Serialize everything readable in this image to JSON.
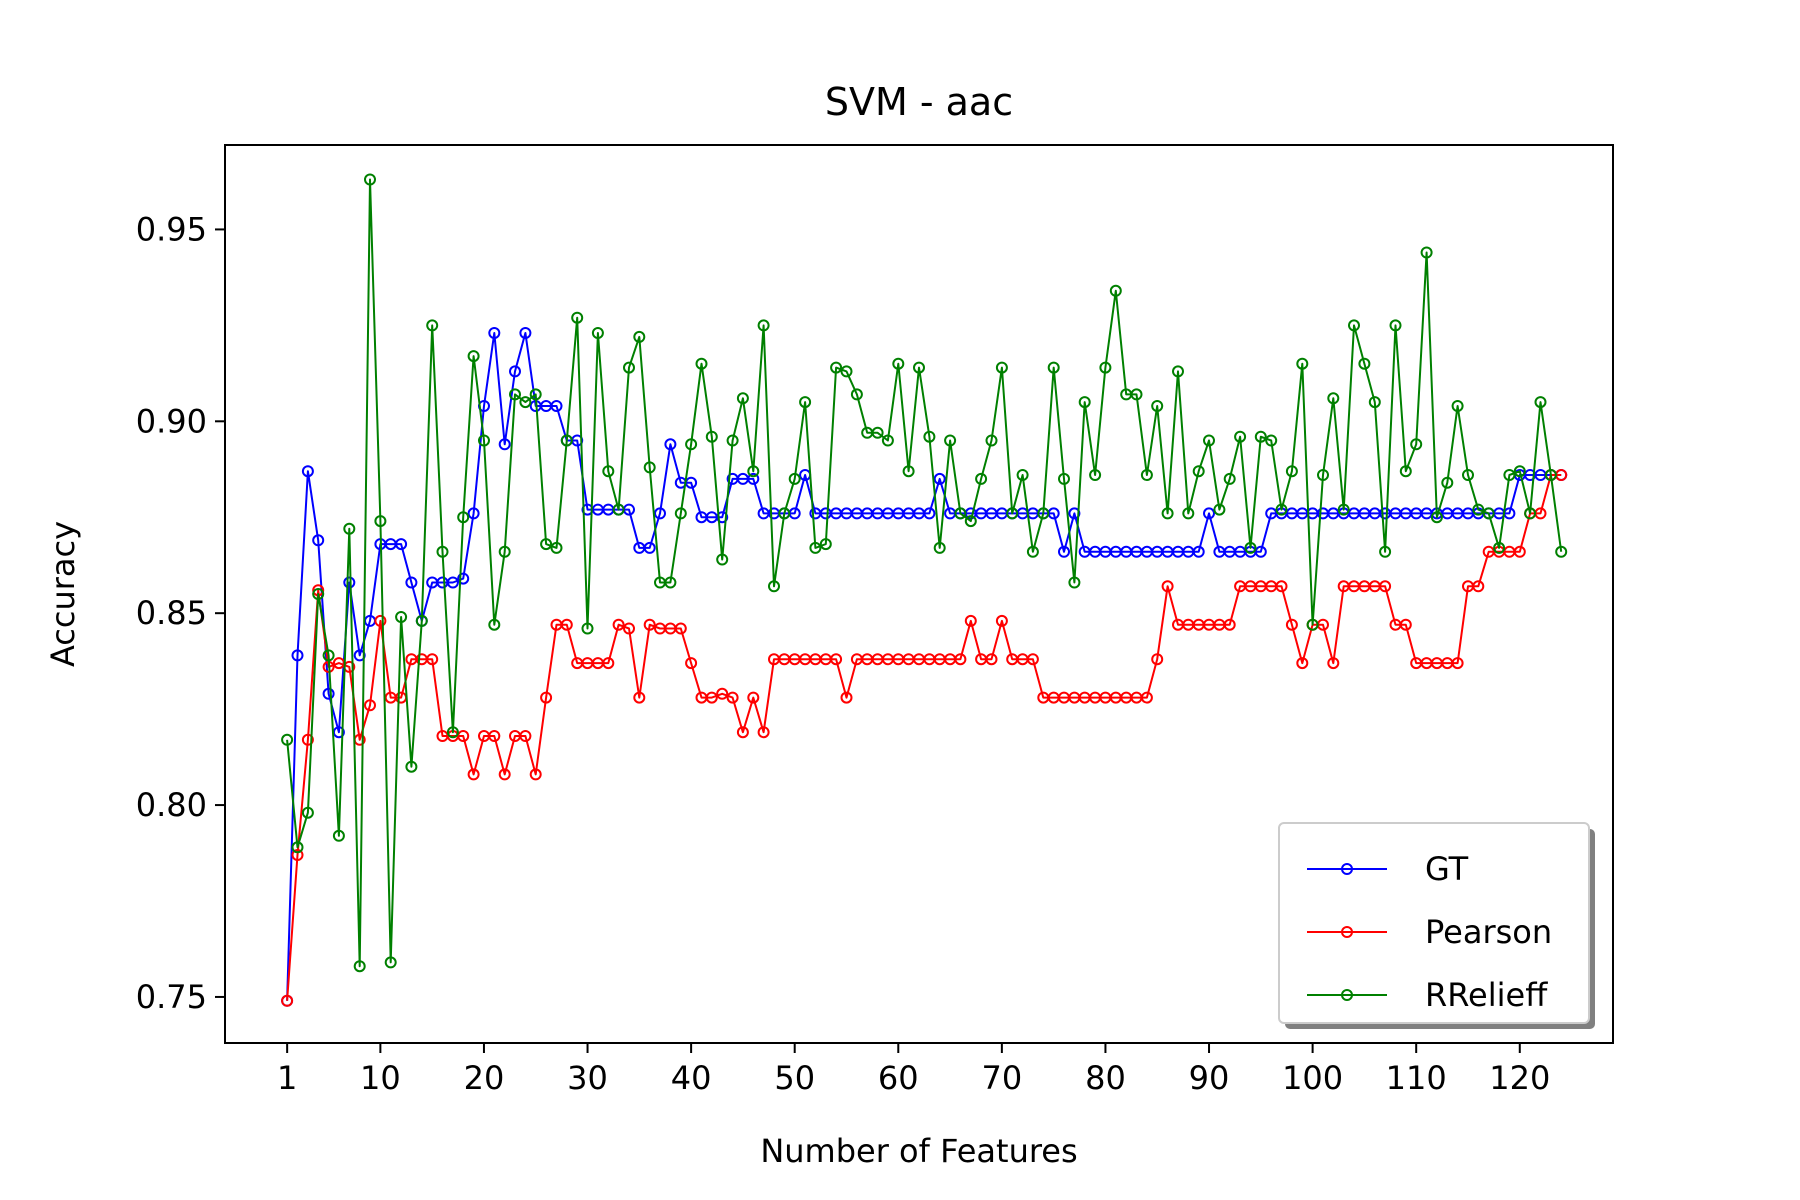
{
  "chart_data": {
    "type": "line",
    "title": "SVM - aac",
    "xlabel": "Number of Features",
    "ylabel": "Accuracy",
    "xlim": [
      -5,
      129
    ],
    "ylim": [
      0.738,
      0.972
    ],
    "xticks": [
      1,
      10,
      20,
      30,
      40,
      50,
      60,
      70,
      80,
      90,
      100,
      110,
      120
    ],
    "yticks": [
      0.75,
      0.8,
      0.85,
      0.9,
      0.95
    ],
    "ytick_labels": [
      "0.75",
      "0.80",
      "0.85",
      "0.90",
      "0.95"
    ],
    "grid": false,
    "legend": {
      "position": "lower-right",
      "shadow": true
    },
    "x": [
      1,
      2,
      3,
      4,
      5,
      6,
      7,
      8,
      9,
      10,
      11,
      12,
      13,
      14,
      15,
      16,
      17,
      18,
      19,
      20,
      21,
      22,
      23,
      24,
      25,
      26,
      27,
      28,
      29,
      30,
      31,
      32,
      33,
      34,
      35,
      36,
      37,
      38,
      39,
      40,
      41,
      42,
      43,
      44,
      45,
      46,
      47,
      48,
      49,
      50,
      51,
      52,
      53,
      54,
      55,
      56,
      57,
      58,
      59,
      60,
      61,
      62,
      63,
      64,
      65,
      66,
      67,
      68,
      69,
      70,
      71,
      72,
      73,
      74,
      75,
      76,
      77,
      78,
      79,
      80,
      81,
      82,
      83,
      84,
      85,
      86,
      87,
      88,
      89,
      90,
      91,
      92,
      93,
      94,
      95,
      96,
      97,
      98,
      99,
      100,
      101,
      102,
      103,
      104,
      105,
      106,
      107,
      108,
      109,
      110,
      111,
      112,
      113,
      114,
      115,
      116,
      117,
      118,
      119,
      120,
      121,
      122,
      123,
      124
    ],
    "series": [
      {
        "name": "GT",
        "color": "#0000ff",
        "values": [
          0.749,
          0.839,
          0.887,
          0.869,
          0.829,
          0.819,
          0.858,
          0.839,
          0.848,
          0.868,
          0.868,
          0.868,
          0.858,
          0.848,
          0.858,
          0.858,
          0.858,
          0.859,
          0.876,
          0.904,
          0.923,
          0.894,
          0.913,
          0.923,
          0.904,
          0.904,
          0.904,
          0.895,
          0.895,
          0.877,
          0.877,
          0.877,
          0.877,
          0.877,
          0.867,
          0.867,
          0.876,
          0.894,
          0.884,
          0.884,
          0.875,
          0.875,
          0.875,
          0.885,
          0.885,
          0.885,
          0.876,
          0.876,
          0.876,
          0.876,
          0.886,
          0.876,
          0.876,
          0.876,
          0.876,
          0.876,
          0.876,
          0.876,
          0.876,
          0.876,
          0.876,
          0.876,
          0.876,
          0.885,
          0.876,
          0.876,
          0.876,
          0.876,
          0.876,
          0.876,
          0.876,
          0.876,
          0.876,
          0.876,
          0.876,
          0.866,
          0.876,
          0.866,
          0.866,
          0.866,
          0.866,
          0.866,
          0.866,
          0.866,
          0.866,
          0.866,
          0.866,
          0.866,
          0.866,
          0.876,
          0.866,
          0.866,
          0.866,
          0.866,
          0.866,
          0.876,
          0.876,
          0.876,
          0.876,
          0.876,
          0.876,
          0.876,
          0.876,
          0.876,
          0.876,
          0.876,
          0.876,
          0.876,
          0.876,
          0.876,
          0.876,
          0.876,
          0.876,
          0.876,
          0.876,
          0.876,
          0.876,
          0.876,
          0.876,
          0.886,
          0.886,
          0.886,
          0.886,
          0.886
        ]
      },
      {
        "name": "Pearson",
        "color": "#ff0000",
        "values": [
          0.749,
          0.787,
          0.817,
          0.856,
          0.836,
          0.837,
          0.836,
          0.817,
          0.826,
          0.848,
          0.828,
          0.828,
          0.838,
          0.838,
          0.838,
          0.818,
          0.818,
          0.818,
          0.808,
          0.818,
          0.818,
          0.808,
          0.818,
          0.818,
          0.808,
          0.828,
          0.847,
          0.847,
          0.837,
          0.837,
          0.837,
          0.837,
          0.847,
          0.846,
          0.828,
          0.847,
          0.846,
          0.846,
          0.846,
          0.837,
          0.828,
          0.828,
          0.829,
          0.828,
          0.819,
          0.828,
          0.819,
          0.838,
          0.838,
          0.838,
          0.838,
          0.838,
          0.838,
          0.838,
          0.828,
          0.838,
          0.838,
          0.838,
          0.838,
          0.838,
          0.838,
          0.838,
          0.838,
          0.838,
          0.838,
          0.838,
          0.848,
          0.838,
          0.838,
          0.848,
          0.838,
          0.838,
          0.838,
          0.828,
          0.828,
          0.828,
          0.828,
          0.828,
          0.828,
          0.828,
          0.828,
          0.828,
          0.828,
          0.828,
          0.838,
          0.857,
          0.847,
          0.847,
          0.847,
          0.847,
          0.847,
          0.847,
          0.857,
          0.857,
          0.857,
          0.857,
          0.857,
          0.847,
          0.837,
          0.847,
          0.847,
          0.837,
          0.857,
          0.857,
          0.857,
          0.857,
          0.857,
          0.847,
          0.847,
          0.837,
          0.837,
          0.837,
          0.837,
          0.837,
          0.857,
          0.857,
          0.866,
          0.866,
          0.866,
          0.866,
          0.876,
          0.876,
          0.886,
          0.886
        ]
      },
      {
        "name": "RRelieff",
        "color": "#008000",
        "values": [
          0.817,
          0.789,
          0.798,
          0.855,
          0.839,
          0.792,
          0.872,
          0.758,
          0.963,
          0.874,
          0.759,
          0.849,
          0.81,
          0.848,
          0.925,
          0.866,
          0.819,
          0.875,
          0.917,
          0.895,
          0.847,
          0.866,
          0.907,
          0.905,
          0.907,
          0.868,
          0.867,
          0.895,
          0.927,
          0.846,
          0.923,
          0.887,
          0.877,
          0.914,
          0.922,
          0.888,
          0.858,
          0.858,
          0.876,
          0.894,
          0.915,
          0.896,
          0.864,
          0.895,
          0.906,
          0.887,
          0.925,
          0.857,
          0.876,
          0.885,
          0.905,
          0.867,
          0.868,
          0.914,
          0.913,
          0.907,
          0.897,
          0.897,
          0.895,
          0.915,
          0.887,
          0.914,
          0.896,
          0.867,
          0.895,
          0.876,
          0.874,
          0.885,
          0.895,
          0.914,
          0.876,
          0.886,
          0.866,
          0.876,
          0.914,
          0.885,
          0.858,
          0.905,
          0.886,
          0.914,
          0.934,
          0.907,
          0.907,
          0.886,
          0.904,
          0.876,
          0.913,
          0.876,
          0.887,
          0.895,
          0.877,
          0.885,
          0.896,
          0.867,
          0.896,
          0.895,
          0.877,
          0.887,
          0.915,
          0.847,
          0.886,
          0.906,
          0.877,
          0.925,
          0.915,
          0.905,
          0.866,
          0.925,
          0.887,
          0.894,
          0.944,
          0.875,
          0.884,
          0.904,
          0.886,
          0.877,
          0.876,
          0.867,
          0.886,
          0.887,
          0.876,
          0.905,
          0.886,
          0.866
        ]
      }
    ]
  }
}
